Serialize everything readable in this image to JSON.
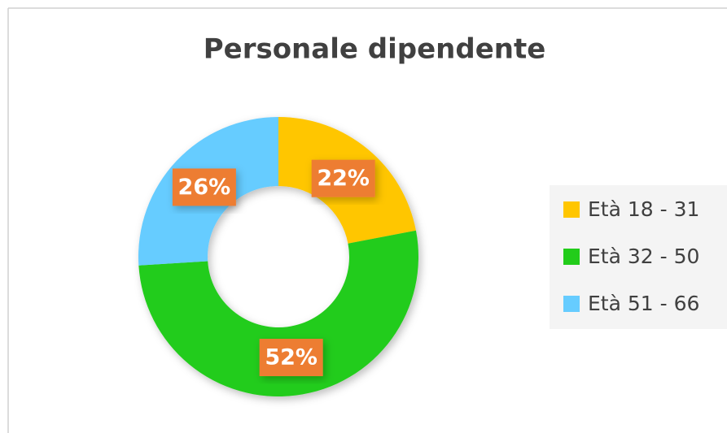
{
  "chart_data": {
    "type": "donut",
    "title": "Personale dipendente",
    "categories": [
      "Età 18 - 31",
      "Età 32 - 50",
      "Età 51 - 66"
    ],
    "values": [
      22,
      52,
      26
    ],
    "value_labels": [
      "22%",
      "52%",
      "26%"
    ],
    "colors": [
      "#FFC600",
      "#22CC1A",
      "#66CCFF"
    ],
    "legend": "right"
  }
}
